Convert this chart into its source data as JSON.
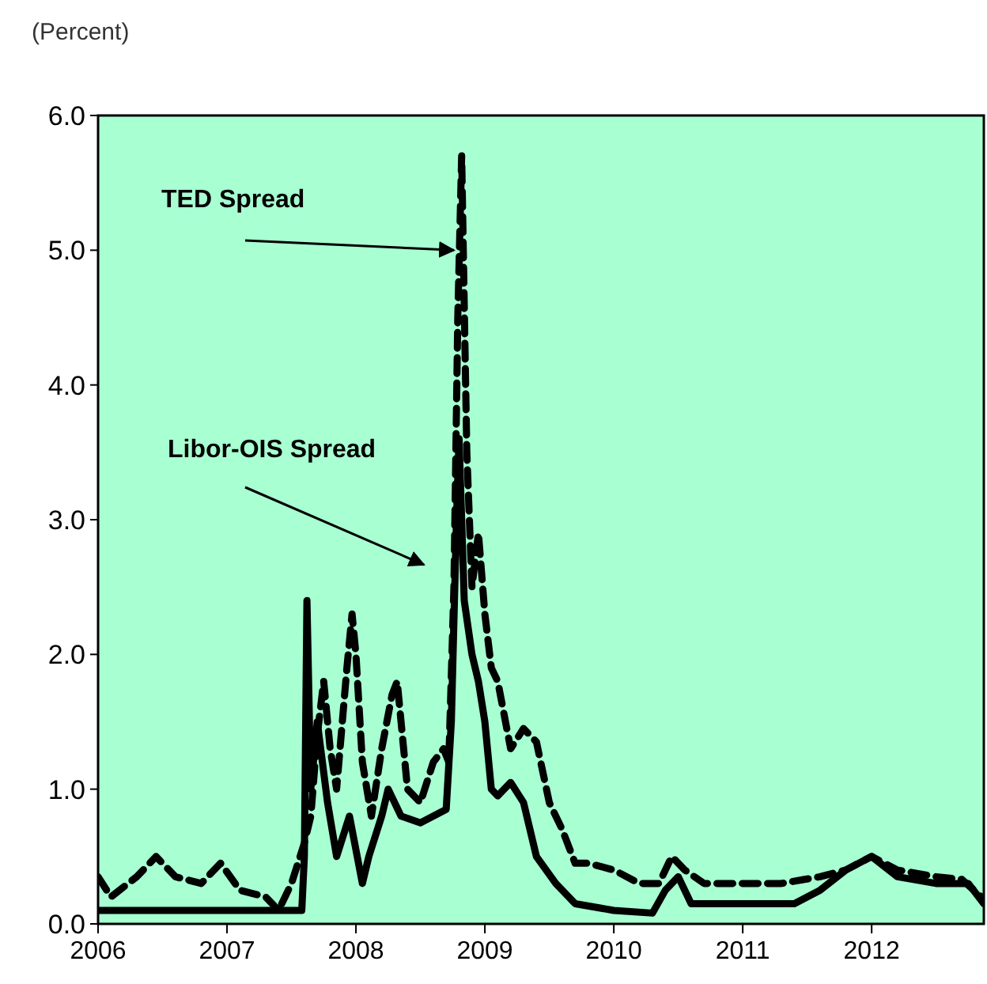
{
  "chart_data": {
    "type": "line",
    "ylabel": "(Percent)",
    "xlim": [
      2006,
      2012.87
    ],
    "xticks": [
      2006,
      2007,
      2008,
      2009,
      2010,
      2011,
      2012
    ],
    "ylim": [
      0,
      6
    ],
    "yticks": [
      {
        "value": 0,
        "label": "0.0"
      },
      {
        "value": 1,
        "label": "1.0"
      },
      {
        "value": 2,
        "label": "2.0"
      },
      {
        "value": 3,
        "label": "3.0"
      },
      {
        "value": 4,
        "label": "4.0"
      },
      {
        "value": 5,
        "label": "5.0"
      },
      {
        "value": 6,
        "label": "6.0"
      }
    ],
    "grid": false,
    "marker": "none",
    "series": [
      {
        "color": "#000000",
        "line_style": "dashed",
        "x": [
          2006.0,
          2006.1,
          2006.3,
          2006.45,
          2006.6,
          2006.8,
          2006.95,
          2007.1,
          2007.3,
          2007.4,
          2007.5,
          2007.6,
          2007.65,
          2007.7,
          2007.75,
          2007.8,
          2007.85,
          2007.93,
          2007.97,
          2008.0,
          2008.05,
          2008.12,
          2008.2,
          2008.28,
          2008.32,
          2008.4,
          2008.5,
          2008.6,
          2008.68,
          2008.72,
          2008.76,
          2008.79,
          2008.82,
          2008.86,
          2008.9,
          2008.95,
          2009.0,
          2009.05,
          2009.1,
          2009.2,
          2009.3,
          2009.4,
          2009.5,
          2009.6,
          2009.7,
          2009.8,
          2010.0,
          2010.2,
          2010.35,
          2010.45,
          2010.55,
          2010.7,
          2011.0,
          2011.3,
          2011.6,
          2011.8,
          2012.0,
          2012.2,
          2012.5,
          2012.7,
          2012.85
        ],
        "values": [
          0.35,
          0.2,
          0.35,
          0.5,
          0.35,
          0.3,
          0.45,
          0.25,
          0.2,
          0.1,
          0.3,
          0.6,
          0.8,
          1.4,
          1.8,
          1.3,
          1.0,
          1.9,
          2.3,
          2.0,
          1.2,
          0.8,
          1.3,
          1.7,
          1.8,
          1.0,
          0.9,
          1.2,
          1.3,
          1.2,
          2.5,
          4.5,
          5.7,
          3.5,
          2.5,
          2.9,
          2.3,
          1.9,
          1.8,
          1.3,
          1.45,
          1.35,
          0.9,
          0.7,
          0.45,
          0.45,
          0.4,
          0.3,
          0.3,
          0.5,
          0.4,
          0.3,
          0.3,
          0.3,
          0.35,
          0.4,
          0.5,
          0.4,
          0.35,
          0.33,
          0.2
        ]
      },
      {
        "color": "#000000",
        "line_style": "solid",
        "x": [
          2006.0,
          2006.5,
          2007.0,
          2007.5,
          2007.58,
          2007.6,
          2007.62,
          2007.65,
          2007.7,
          2007.78,
          2007.85,
          2007.95,
          2008.05,
          2008.1,
          2008.2,
          2008.25,
          2008.35,
          2008.5,
          2008.7,
          2008.74,
          2008.78,
          2008.8,
          2008.84,
          2008.9,
          2008.95,
          2009.0,
          2009.05,
          2009.1,
          2009.2,
          2009.3,
          2009.4,
          2009.55,
          2009.7,
          2010.0,
          2010.3,
          2010.4,
          2010.5,
          2010.6,
          2011.0,
          2011.4,
          2011.6,
          2011.8,
          2012.0,
          2012.2,
          2012.5,
          2012.75,
          2012.87
        ],
        "values": [
          0.1,
          0.1,
          0.1,
          0.1,
          0.1,
          0.5,
          2.4,
          1.0,
          1.5,
          0.9,
          0.5,
          0.8,
          0.3,
          0.5,
          0.8,
          1.0,
          0.8,
          0.75,
          0.85,
          1.5,
          3.0,
          3.6,
          2.4,
          2.0,
          1.8,
          1.5,
          1.0,
          0.95,
          1.05,
          0.9,
          0.5,
          0.3,
          0.15,
          0.1,
          0.08,
          0.25,
          0.35,
          0.15,
          0.15,
          0.15,
          0.25,
          0.4,
          0.5,
          0.35,
          0.3,
          0.3,
          0.15
        ]
      }
    ],
    "annotations": [
      {
        "text": "TED Spread",
        "x": 2008.76,
        "y": 5.0
      },
      "Libor-OIS Spread"
    ]
  }
}
